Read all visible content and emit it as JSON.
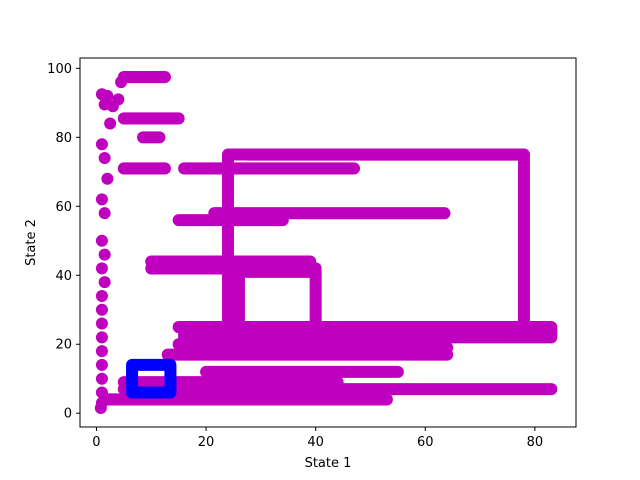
{
  "chart_data": {
    "type": "scatter",
    "title": "",
    "xlabel": "State 1",
    "ylabel": "State 2",
    "xlim": [
      -3,
      87.5
    ],
    "ylim": [
      -4,
      103
    ],
    "xticks": [
      0,
      20,
      40,
      60,
      80
    ],
    "yticks": [
      0,
      20,
      40,
      60,
      80,
      100
    ],
    "grid": false,
    "legend": "none",
    "series": [
      {
        "color": "#bf00bf",
        "marker": "circle",
        "rectangles": [
          [
            5,
            97.5,
            12.5,
            97.5
          ],
          [
            5,
            85.5,
            15,
            85.5
          ],
          [
            8.5,
            80,
            11.5,
            80
          ],
          [
            5,
            71,
            12.5,
            71
          ],
          [
            16,
            71,
            47,
            71
          ],
          [
            27.5,
            75,
            78,
            75
          ],
          [
            24,
            75,
            78,
            25
          ],
          [
            21.5,
            58,
            63.5,
            58
          ],
          [
            15,
            56,
            34,
            56
          ],
          [
            10,
            44,
            39,
            44
          ],
          [
            10,
            42,
            40,
            42
          ],
          [
            26,
            41,
            40,
            20
          ],
          [
            15,
            25,
            78,
            25
          ],
          [
            16,
            25,
            83,
            22
          ],
          [
            15,
            20,
            63,
            20
          ],
          [
            35,
            19,
            64,
            19
          ],
          [
            13,
            17,
            64,
            17
          ],
          [
            20,
            12,
            55,
            12
          ],
          [
            5,
            7,
            83,
            7
          ],
          [
            5,
            9,
            44,
            9
          ],
          [
            2,
            4,
            53,
            4
          ]
        ],
        "scatter_points": [
          [
            1,
            92.5
          ],
          [
            2,
            92
          ],
          [
            1.5,
            89.5
          ],
          [
            3,
            89
          ],
          [
            4.5,
            96
          ],
          [
            4,
            91
          ],
          [
            2.5,
            84
          ],
          [
            1,
            78
          ],
          [
            1.5,
            74
          ],
          [
            2,
            68
          ],
          [
            1,
            62
          ],
          [
            1.5,
            58
          ],
          [
            1,
            50
          ],
          [
            1.5,
            46
          ],
          [
            1,
            42
          ],
          [
            1.5,
            38
          ],
          [
            1,
            34
          ],
          [
            1,
            30
          ],
          [
            1,
            26
          ],
          [
            1,
            22
          ],
          [
            1,
            18
          ],
          [
            1,
            14
          ],
          [
            1,
            10
          ],
          [
            1,
            6
          ],
          [
            1,
            3
          ],
          [
            0.8,
            1.5
          ]
        ]
      },
      {
        "color": "#0000ff",
        "marker": "circle",
        "rectangles": [
          [
            6.5,
            14,
            13.5,
            6
          ]
        ],
        "scatter_points": []
      }
    ]
  }
}
